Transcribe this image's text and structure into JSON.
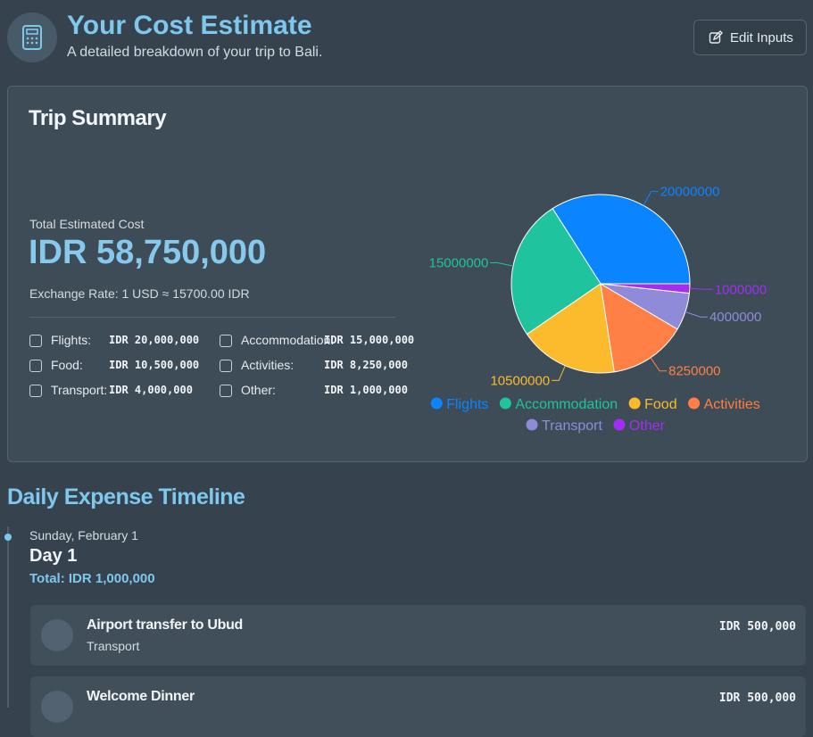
{
  "header": {
    "title": "Your Cost Estimate",
    "subtitle": "A detailed breakdown of your trip to Bali.",
    "button": "Edit Inputs"
  },
  "summary": {
    "title": "Trip Summary",
    "total_label": "Total Estimated Cost",
    "total": "IDR 58,750,000",
    "exchange": "Exchange Rate: 1 USD ≈ 15700.00 IDR",
    "items": [
      {
        "label": "Flights:",
        "amount": "IDR 20,000,000"
      },
      {
        "label": "Accommodation:",
        "amount": "IDR 15,000,000"
      },
      {
        "label": "Food:",
        "amount": "IDR 10,500,000"
      },
      {
        "label": "Activities:",
        "amount": "IDR 8,250,000"
      },
      {
        "label": "Transport:",
        "amount": "IDR 4,000,000"
      },
      {
        "label": "Other:",
        "amount": "IDR 1,000,000"
      }
    ]
  },
  "chart_data": {
    "type": "pie",
    "categories": [
      "Flights",
      "Accommodation",
      "Food",
      "Activities",
      "Transport",
      "Other"
    ],
    "values": [
      20000000,
      15000000,
      10500000,
      8250000,
      4000000,
      1000000
    ],
    "colors": [
      "#0a84ff",
      "#1fc39e",
      "#fbbb2d",
      "#ff7f45",
      "#8f8bd9",
      "#a12ef2"
    ]
  },
  "timeline": {
    "title": "Daily Expense Timeline",
    "days": [
      {
        "date": "Sunday, February 1",
        "day": "Day 1",
        "total": "Total: IDR 1,000,000",
        "expenses": [
          {
            "name": "Airport transfer to Ubud",
            "category": "Transport",
            "amount": "IDR 500,000"
          },
          {
            "name": "Welcome Dinner",
            "amount": "IDR 500,000"
          }
        ]
      }
    ]
  }
}
